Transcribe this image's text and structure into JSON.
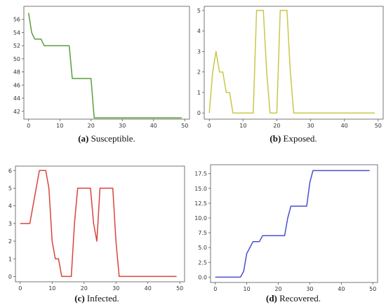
{
  "chart_data": [
    {
      "type": "line",
      "color": "#5a9e3a",
      "caption": {
        "tag": "(a)",
        "text": " Susceptible."
      },
      "xlim": [
        -1.5,
        51.5
      ],
      "ylim": [
        40.8,
        58
      ],
      "xticks": [
        0,
        10,
        20,
        30,
        40,
        50
      ],
      "yticks": [
        42,
        44,
        46,
        48,
        50,
        52,
        54,
        56
      ],
      "ytick_labels": [
        "42",
        "44",
        "46",
        "48",
        "50",
        "52",
        "54",
        "56"
      ],
      "x": [
        0,
        1,
        2,
        3,
        4,
        5,
        13,
        14,
        20,
        21,
        49
      ],
      "y": [
        57,
        54,
        53,
        53,
        53,
        52,
        52,
        47,
        47,
        41,
        41
      ]
    },
    {
      "type": "line",
      "color": "#c8c84a",
      "caption": {
        "tag": "(b)",
        "text": " Exposed."
      },
      "xlim": [
        -1.5,
        51.5
      ],
      "ylim": [
        -0.3,
        5.2
      ],
      "xticks": [
        0,
        10,
        20,
        30,
        40,
        50
      ],
      "yticks": [
        0,
        1,
        2,
        3,
        4,
        5
      ],
      "ytick_labels": [
        "0",
        "1",
        "2",
        "3",
        "4",
        "5"
      ],
      "x": [
        0,
        1,
        2,
        3,
        4,
        5,
        6,
        7,
        13,
        14,
        16,
        17,
        18,
        20,
        21,
        23,
        24,
        25,
        49
      ],
      "y": [
        0,
        2,
        3,
        2,
        2,
        1,
        1,
        0,
        0,
        5,
        5,
        2,
        0,
        0,
        5,
        5,
        2,
        0,
        0
      ]
    },
    {
      "type": "line",
      "color": "#d9443a",
      "caption": {
        "tag": "(c)",
        "text": " Infected."
      },
      "xlim": [
        -1.5,
        51.5
      ],
      "ylim": [
        -0.3,
        6.25
      ],
      "xticks": [
        0,
        10,
        20,
        30,
        40,
        50
      ],
      "yticks": [
        0,
        1,
        2,
        3,
        4,
        5,
        6
      ],
      "ytick_labels": [
        "0",
        "1",
        "2",
        "3",
        "4",
        "5",
        "6"
      ],
      "x": [
        0,
        3,
        6,
        8,
        9,
        10,
        11,
        12,
        13,
        16,
        17,
        18,
        22,
        23,
        24,
        25,
        29,
        30,
        31,
        49
      ],
      "y": [
        3,
        3,
        6,
        6,
        5,
        2,
        1,
        1,
        0,
        0,
        3,
        5,
        5,
        3,
        2,
        5,
        5,
        2,
        0,
        0
      ]
    },
    {
      "type": "line",
      "color": "#4a4fd0",
      "caption": {
        "tag": "(d)",
        "text": " Recovered."
      },
      "xlim": [
        -1.5,
        51.5
      ],
      "ylim": [
        -0.9,
        19
      ],
      "xticks": [
        0,
        10,
        20,
        30,
        40,
        50
      ],
      "yticks": [
        0,
        2.5,
        5,
        7.5,
        10,
        12.5,
        15,
        17.5
      ],
      "ytick_labels": [
        "0.0",
        "2.5",
        "5.0",
        "7.5",
        "10.0",
        "12.5",
        "15.0",
        "17.5"
      ],
      "x": [
        0,
        8,
        9,
        10,
        12,
        13,
        14,
        15,
        22,
        23,
        24,
        25,
        29,
        30,
        31,
        49
      ],
      "y": [
        0,
        0,
        1,
        4,
        6,
        6,
        6,
        7,
        7,
        10,
        12,
        12,
        12,
        16,
        18,
        18
      ]
    }
  ]
}
